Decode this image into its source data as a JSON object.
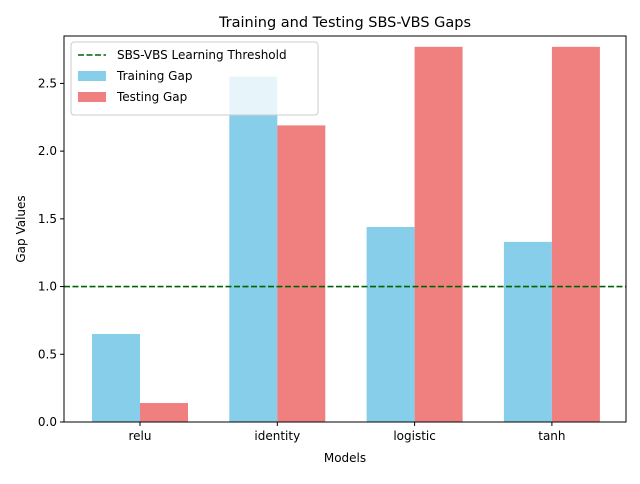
{
  "chart_data": {
    "type": "bar",
    "title": "Training and Testing SBS-VBS Gaps",
    "xlabel": "Models",
    "ylabel": "Gap Values",
    "categories": [
      "relu",
      "identity",
      "logistic",
      "tanh"
    ],
    "series": [
      {
        "name": "Training Gap",
        "values": [
          0.65,
          2.55,
          1.44,
          1.33
        ],
        "color": "#87ceeb"
      },
      {
        "name": "Testing Gap",
        "values": [
          0.14,
          2.19,
          2.77,
          2.77
        ],
        "color": "#f08080"
      }
    ],
    "threshold": {
      "name": "SBS-VBS Learning Threshold",
      "value": 1.0,
      "color": "#006400",
      "style": "dashed"
    },
    "ylim": [
      0,
      2.85
    ],
    "yticks": [
      0.0,
      0.5,
      1.0,
      1.5,
      2.0,
      2.5
    ],
    "ytick_labels": [
      "0.0",
      "0.5",
      "1.0",
      "1.5",
      "2.0",
      "2.5"
    ],
    "grid": false,
    "legend_position": "top-left"
  }
}
